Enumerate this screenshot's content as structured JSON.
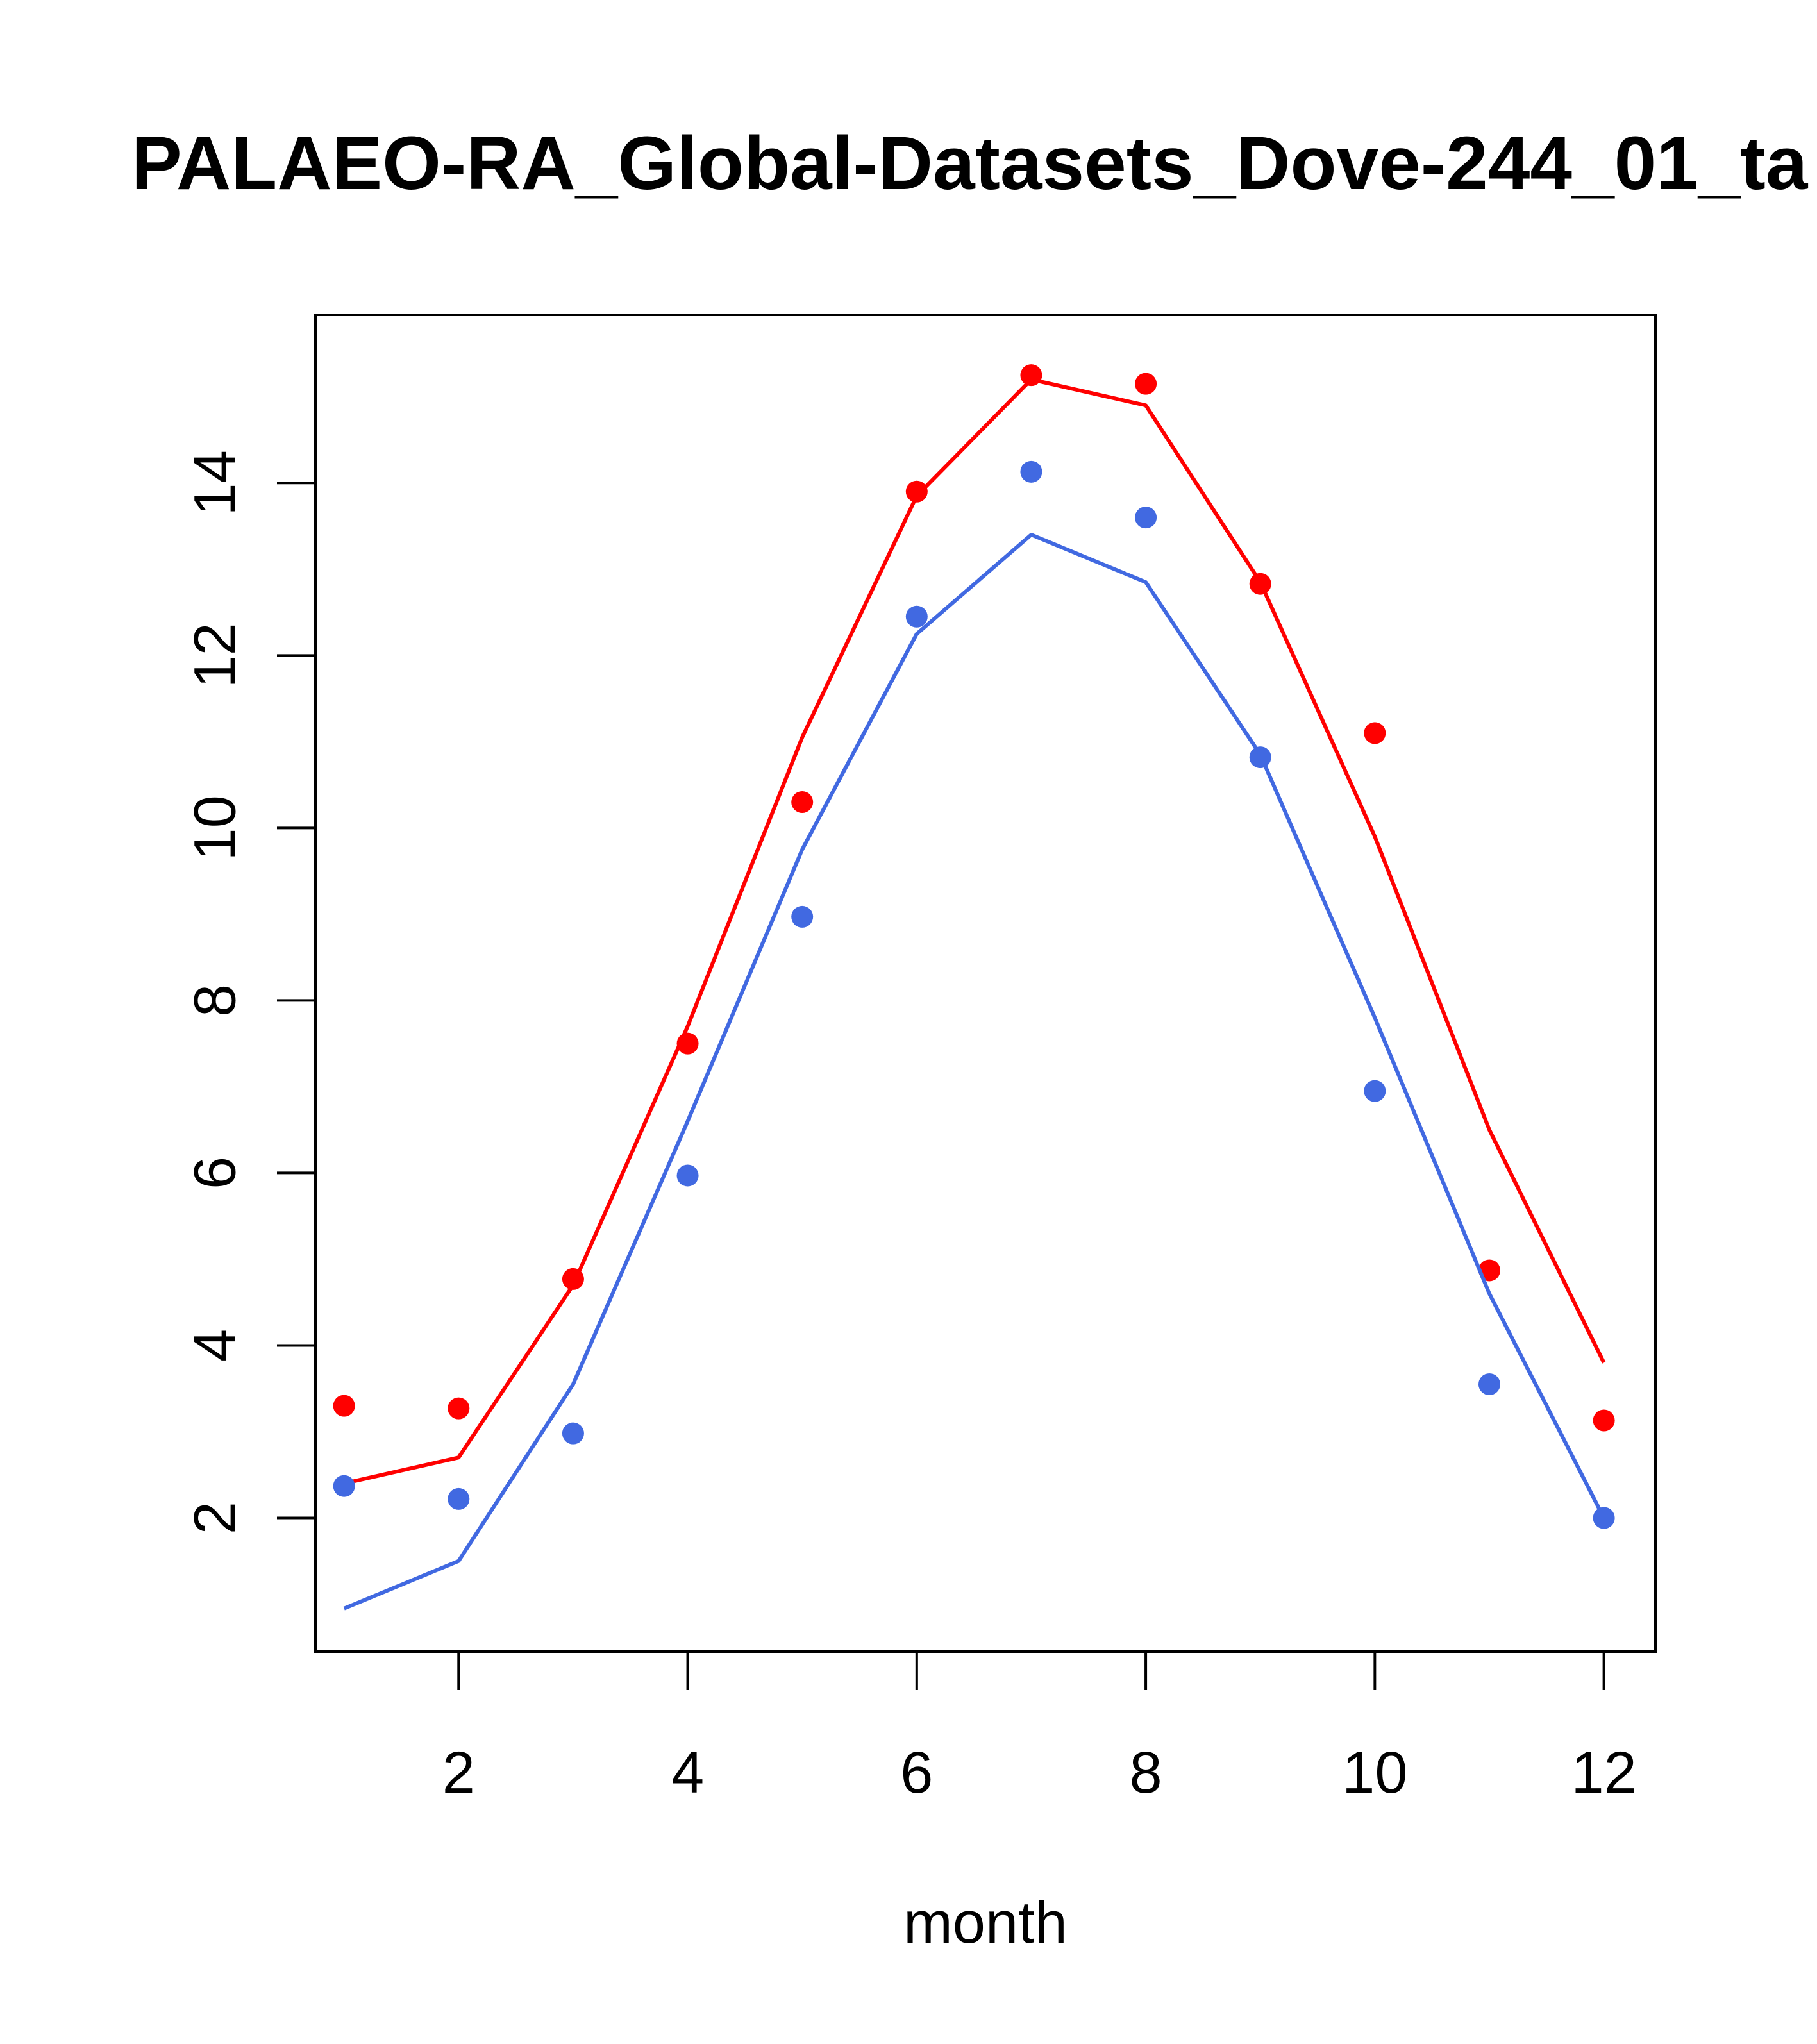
{
  "title": "PALAEO-RA_Global-Datasets_Dove-244_01_ta",
  "chart_data": {
    "type": "line",
    "title": "PALAEO-RA_Global-Datasets_Dove-244_01_ta",
    "xlabel": "month",
    "ylabel": "",
    "xlim": [
      0.75,
      12.45
    ],
    "ylim": [
      0.45,
      15.95
    ],
    "x_ticks": [
      2,
      4,
      6,
      8,
      10,
      12
    ],
    "y_ticks": [
      2,
      4,
      6,
      8,
      10,
      12,
      14
    ],
    "x_tick_labels": [
      "2",
      "4",
      "6",
      "8",
      "10",
      "12"
    ],
    "y_tick_labels": [
      "2",
      "4",
      "6",
      "8",
      "10",
      "12",
      "14"
    ],
    "grid": false,
    "legend": "none",
    "x": [
      1,
      2,
      3,
      4,
      5,
      6,
      7,
      8,
      9,
      10,
      11,
      12
    ],
    "series": [
      {
        "kind": "line",
        "color": "#ff0000",
        "values": [
          2.4,
          2.7,
          4.7,
          7.7,
          11.05,
          13.85,
          15.2,
          14.9,
          12.85,
          9.9,
          6.5,
          3.8
        ]
      },
      {
        "kind": "points",
        "color": "#ff0000",
        "values": [
          3.3,
          3.27,
          4.77,
          7.5,
          10.3,
          13.9,
          15.25,
          15.15,
          12.83,
          11.1,
          4.87,
          3.13
        ]
      },
      {
        "kind": "line",
        "color": "#4169e1",
        "values": [
          0.95,
          1.5,
          3.55,
          6.6,
          9.75,
          12.25,
          13.4,
          12.85,
          10.85,
          7.8,
          4.6,
          2.0
        ]
      },
      {
        "kind": "points",
        "color": "#4169e1",
        "values": [
          2.37,
          2.22,
          2.98,
          5.97,
          8.97,
          12.45,
          14.13,
          13.6,
          10.82,
          6.95,
          3.55,
          2.0
        ]
      }
    ]
  }
}
